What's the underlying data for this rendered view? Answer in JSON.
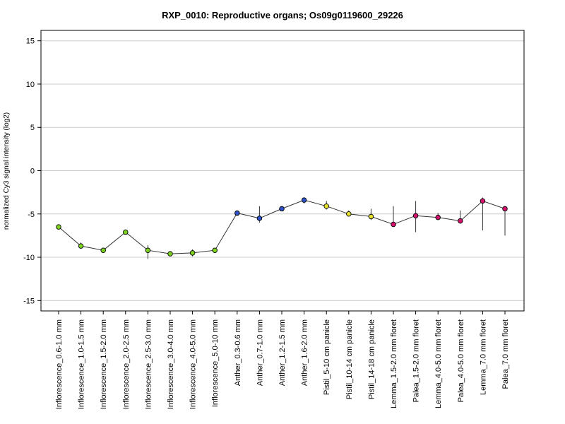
{
  "chart_data": {
    "type": "line",
    "title": "RXP_0010: Reproductive organs; Os09g0119600_29226",
    "xlabel": "",
    "ylabel": "normalized Cy3 signal intensity (log2)",
    "ylim": [
      -16.2,
      16.2
    ],
    "yticks": [
      -15,
      -10,
      -5,
      0,
      5,
      10,
      15
    ],
    "grid": true,
    "categories": [
      "Inflorescence_0.6-1.0 mm",
      "Inflorescence_1.0-1.5 mm",
      "Inflorescence_1.5-2.0 mm",
      "Inflorescence_2.0-2.5 mm",
      "Inflorescence_2.5-3.0 mm",
      "Inflorescence_3.0-4.0 mm",
      "Inflorescence_4.0-5.0 mm",
      "Inflorescence_5.0-10 mm",
      "Anther_0.3-0.6 mm",
      "Anther_0.7-1.0 mm",
      "Anther_1.2-1.5 mm",
      "Anther_1.6-2.0 mm",
      "Pistil_5-10 cm panicle",
      "Pistil_10-14 cm panicle",
      "Pistil_14-18 cm panicle",
      "Lemma_1.5-2.0 mm floret",
      "Palea_1.5-2.0 mm floret",
      "Lemma_4.0-5.0 mm floret",
      "Palea_4.0-5.0 mm floret",
      "Lemma_7.0 mm floret",
      "Palea_7.0 mm floret"
    ],
    "series": [
      {
        "values": [
          -6.5,
          -8.7,
          -9.2,
          -7.1,
          -9.2,
          -9.6,
          -9.5,
          -9.2,
          -4.9,
          -5.5,
          -4.4,
          -3.4,
          -4.1,
          -5.0,
          -5.3,
          -6.2,
          -5.2,
          -5.4,
          -5.8,
          -3.5,
          -4.4
        ],
        "error_low": [
          -6.5,
          -9.0,
          -9.2,
          -7.1,
          -10.2,
          -9.6,
          -9.9,
          -9.4,
          -4.9,
          -6.0,
          -4.5,
          -3.8,
          -4.5,
          -5.2,
          -5.7,
          -6.5,
          -7.1,
          -5.6,
          -6.1,
          -6.9,
          -7.5
        ],
        "error_high": [
          -6.5,
          -8.3,
          -9.2,
          -7.1,
          -8.6,
          -9.6,
          -9.1,
          -9.0,
          -4.9,
          -4.1,
          -4.3,
          -3.3,
          -3.5,
          -4.6,
          -4.4,
          -4.1,
          -3.5,
          -4.9,
          -4.6,
          -3.1,
          -4.2
        ],
        "point_colors": [
          "#7ED321",
          "#7ED321",
          "#7ED321",
          "#7ED321",
          "#7ED321",
          "#7ED321",
          "#7ED321",
          "#7ED321",
          "#2E52C8",
          "#2E52C8",
          "#2E52C8",
          "#2E52C8",
          "#E6E032",
          "#E6E032",
          "#E6E032",
          "#D4136E",
          "#D4136E",
          "#D4136E",
          "#D4136E",
          "#D4136E",
          "#D4136E"
        ]
      }
    ]
  }
}
